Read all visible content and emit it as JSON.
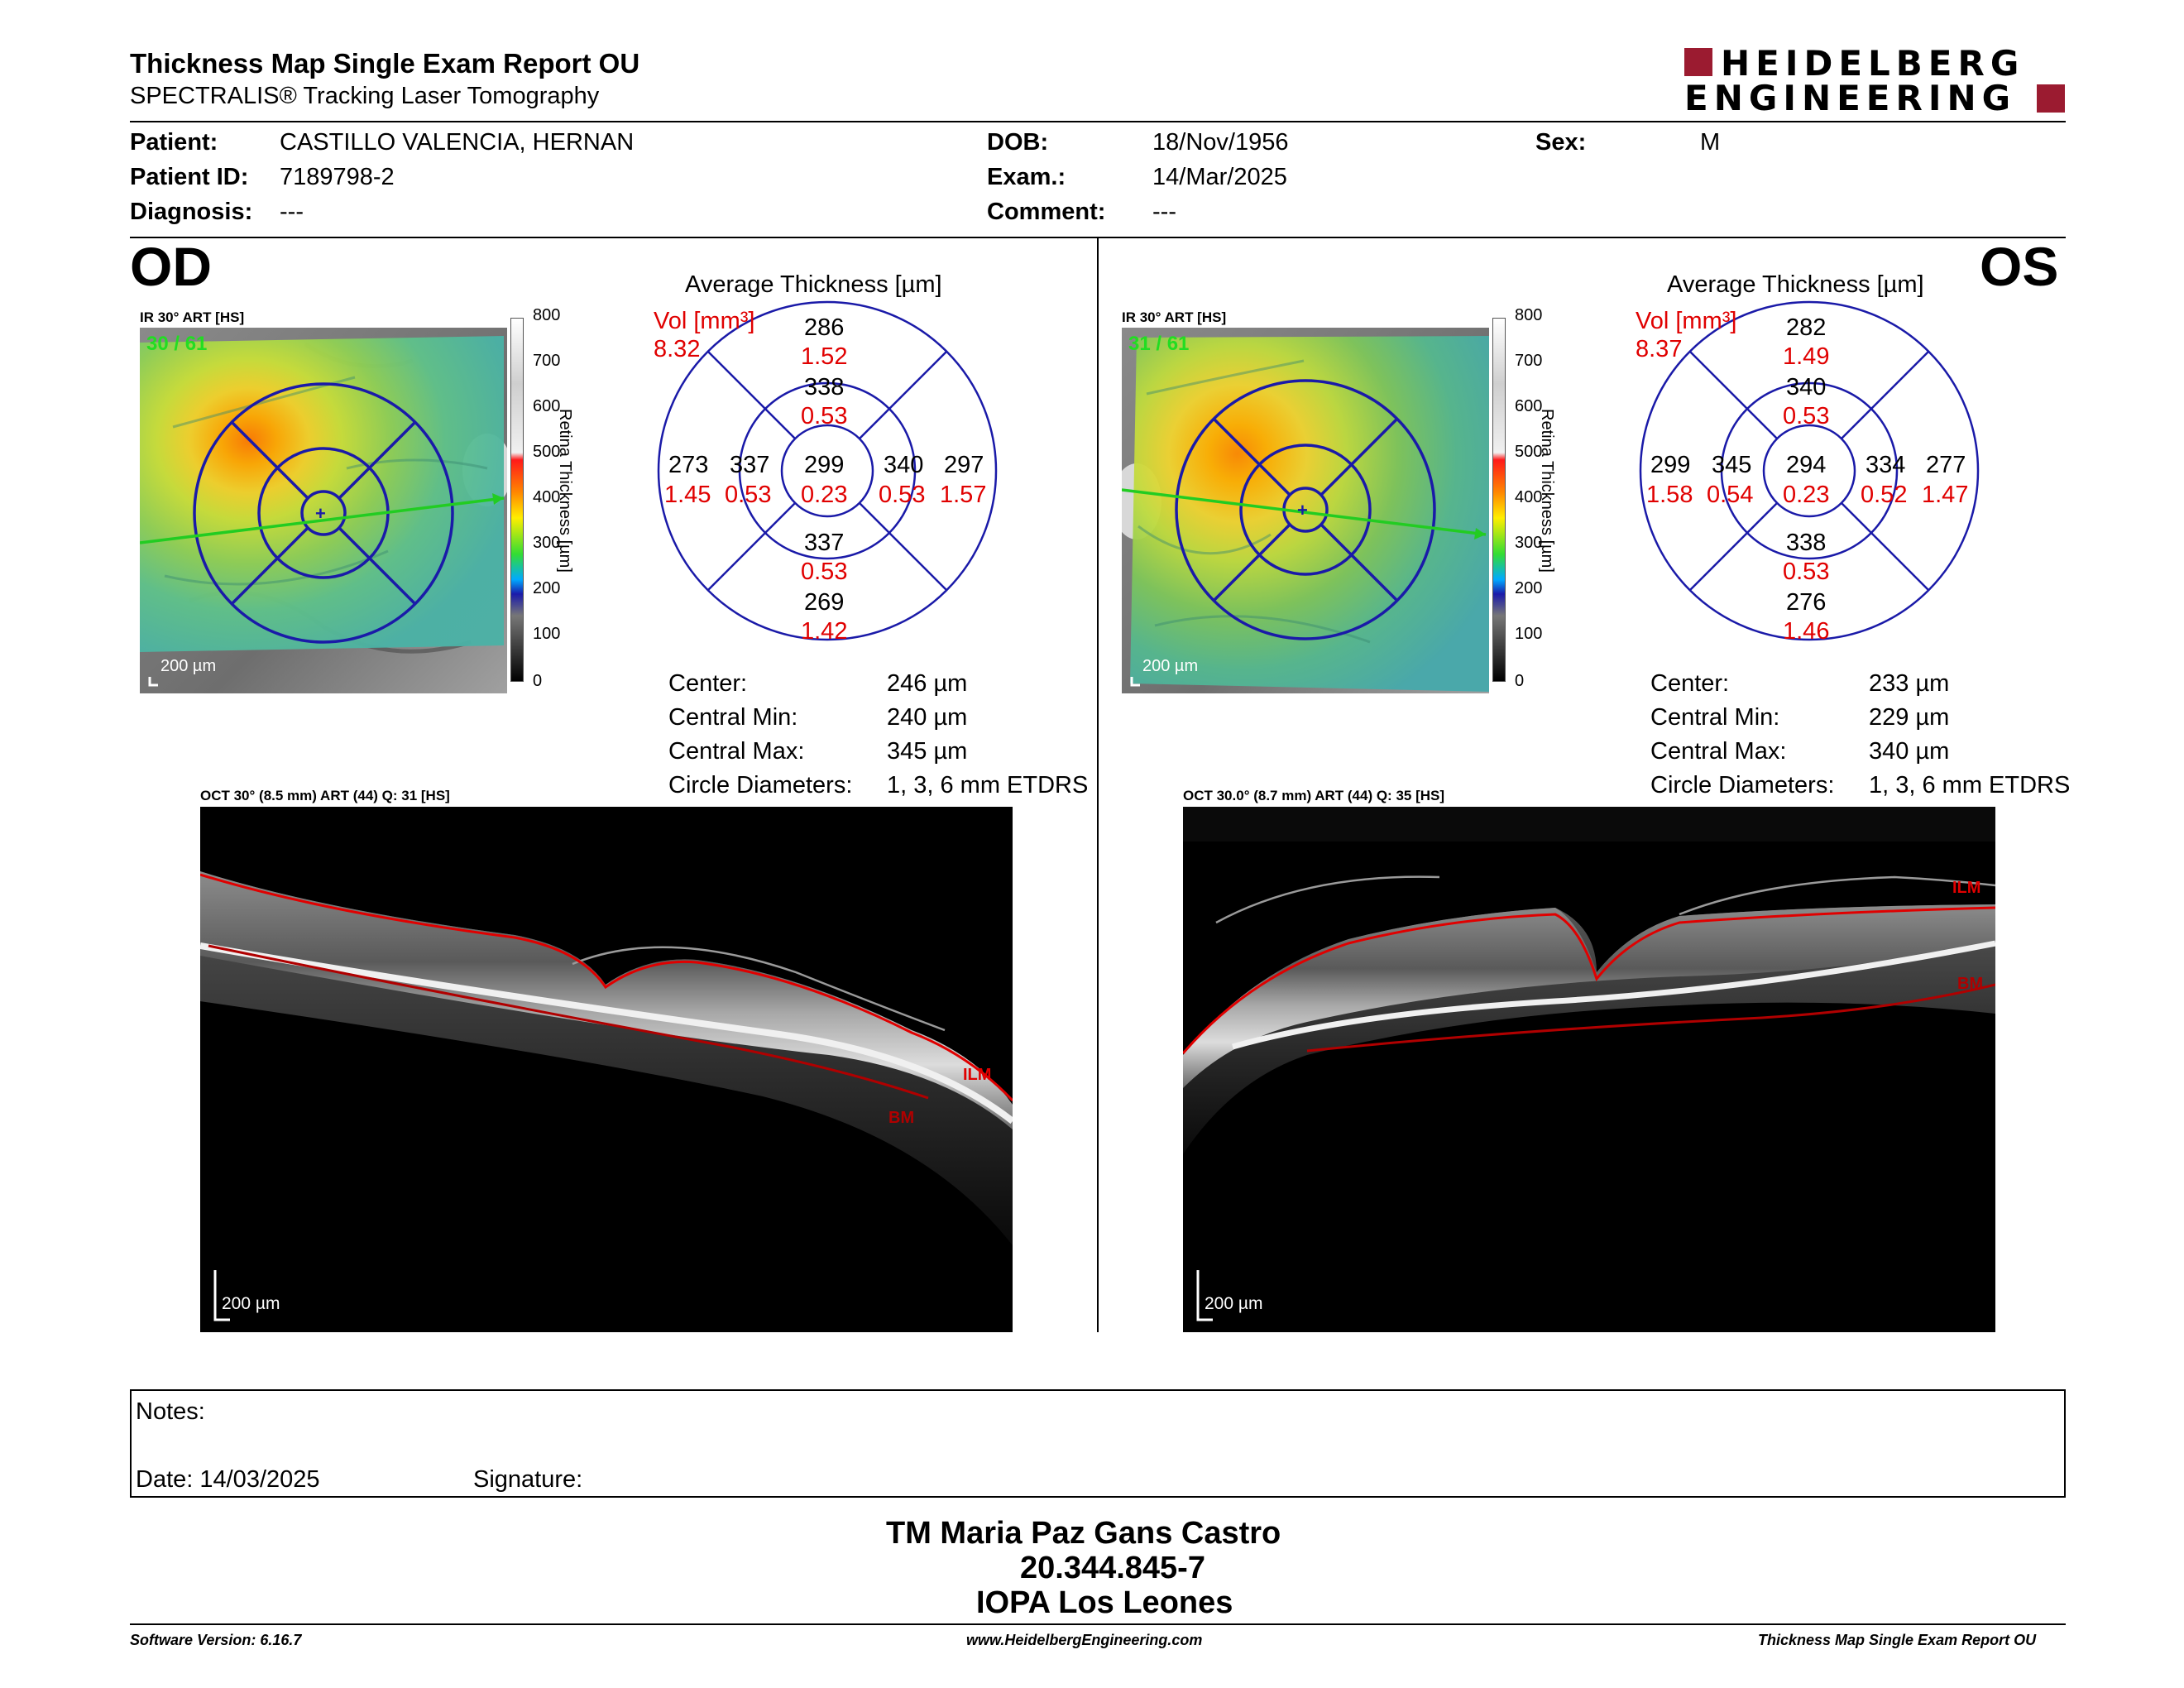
{
  "header": {
    "title": "Thickness Map Single Exam Report OU",
    "subtitle": "SPECTRALIS® Tracking Laser Tomography",
    "logo_line1": "HEIDELBERG",
    "logo_line2": "ENGINEERING"
  },
  "patient": {
    "patient_label": "Patient:",
    "patient_value": "CASTILLO VALENCIA, HERNAN",
    "id_label": "Patient ID:",
    "id_value": "7189798-2",
    "diagnosis_label": "Diagnosis:",
    "diagnosis_value": "---",
    "dob_label": "DOB:",
    "dob_value": "18/Nov/1956",
    "exam_label": "Exam.:",
    "exam_value": "14/Mar/2025",
    "comment_label": "Comment:",
    "comment_value": "---",
    "sex_label": "Sex:",
    "sex_value": "M"
  },
  "colorbar": {
    "ticks": [
      "800",
      "700",
      "600",
      "500",
      "400",
      "300",
      "200",
      "100",
      "0"
    ],
    "label": "Retina Thickness [µm]"
  },
  "od": {
    "eye_label": "OD",
    "ir_label": "IR 30° ART [HS]",
    "ir_quality": "30 / 61",
    "ir_scale": "200 µm",
    "chart_title": "Average Thickness [µm]",
    "vol_label": "Vol [mm³]",
    "vol_value": "8.32",
    "sectors": {
      "sup_outer": [
        "286",
        "1.52"
      ],
      "sup_inner": [
        "338",
        "0.53"
      ],
      "temp_outer": [
        "273",
        "1.45"
      ],
      "temp_inner": [
        "337",
        "0.53"
      ],
      "center": [
        "299",
        "0.23"
      ],
      "nas_inner": [
        "340",
        "0.53"
      ],
      "nas_outer": [
        "297",
        "1.57"
      ],
      "inf_inner": [
        "337",
        "0.53"
      ],
      "inf_outer": [
        "269",
        "1.42"
      ]
    },
    "stats": {
      "center_label": "Center:",
      "center_value": "246 µm",
      "min_label": "Central Min:",
      "min_value": "240 µm",
      "max_label": "Central Max:",
      "max_value": "345 µm",
      "diam_label": "Circle Diameters:",
      "diam_value": "1, 3, 6 mm ETDRS"
    },
    "oct_label": "OCT 30° (8.5 mm) ART (44) Q: 31 [HS]",
    "oct_scale": "200 µm",
    "ilm": "ILM",
    "bm": "BM"
  },
  "os": {
    "eye_label": "OS",
    "ir_label": "IR 30° ART [HS]",
    "ir_quality": "31 / 61",
    "ir_scale": "200 µm",
    "chart_title": "Average Thickness [µm]",
    "vol_label": "Vol [mm³]",
    "vol_value": "8.37",
    "sectors": {
      "sup_outer": [
        "282",
        "1.49"
      ],
      "sup_inner": [
        "340",
        "0.53"
      ],
      "temp_outer": [
        "299",
        "1.58"
      ],
      "temp_inner": [
        "345",
        "0.54"
      ],
      "center": [
        "294",
        "0.23"
      ],
      "nas_inner": [
        "334",
        "0.52"
      ],
      "nas_outer": [
        "277",
        "1.47"
      ],
      "inf_inner": [
        "338",
        "0.53"
      ],
      "inf_outer": [
        "276",
        "1.46"
      ]
    },
    "stats": {
      "center_label": "Center:",
      "center_value": "233 µm",
      "min_label": "Central Min:",
      "min_value": "229 µm",
      "max_label": "Central Max:",
      "max_value": "340 µm",
      "diam_label": "Circle Diameters:",
      "diam_value": "1, 3, 6 mm ETDRS"
    },
    "oct_label": "OCT 30.0° (8.7 mm) ART (44) Q: 35 [HS]",
    "oct_scale": "200 µm",
    "ilm": "ILM",
    "bm": "BM"
  },
  "notes": {
    "notes_label": "Notes:",
    "date_label": "Date: 14/03/2025",
    "signature_label": "Signature:"
  },
  "stamp": {
    "line1": "TM Maria Paz Gans Castro",
    "line2": "20.344.845-7",
    "line3": "IOPA Los Leones"
  },
  "footer": {
    "software": "Software Version: 6.16.7",
    "website": "www.HeidelbergEngineering.com",
    "report": "Thickness Map Single Exam Report OU"
  },
  "colors": {
    "accent_red": "#e00000",
    "logo_red": "#9b1b30",
    "grid_blue": "#1a1aa8",
    "quality_green": "#22dd22",
    "scan_green": "#22cc22"
  }
}
